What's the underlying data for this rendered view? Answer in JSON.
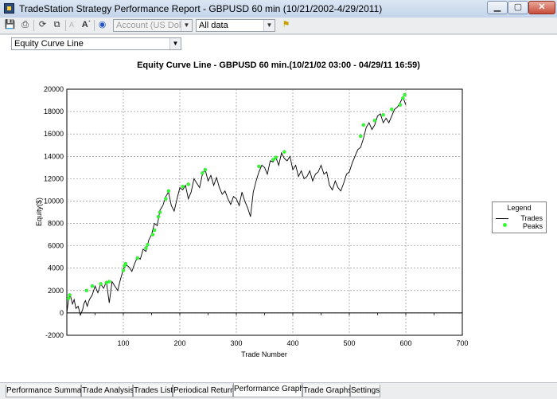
{
  "window": {
    "title": "TradeStation Strategy Performance Report - GBPUSD 60 min (10/21/2002-4/29/2011)",
    "minimize_glyph": "▁",
    "maximize_glyph": "▢",
    "close_glyph": "✕"
  },
  "toolbar": {
    "icons": [
      "save-icon",
      "print-icon",
      "refresh-icon",
      "copy-icon",
      "font-decrease-icon",
      "font-increase-icon",
      "globe-icon",
      "help-icon"
    ],
    "account_select": "Account (US Dollar)",
    "range_select": "All data"
  },
  "graph_select": {
    "value": "Equity Curve Line"
  },
  "chart_title": "Equity Curve Line - GBPUSD 60 min.(10/21/02 03:00 - 04/29/11 16:59)",
  "legend": {
    "title": "Legend",
    "items": [
      "Trades",
      "Peaks"
    ]
  },
  "tabs": [
    {
      "label": "Performance Summary"
    },
    {
      "label": "Trade Analysis"
    },
    {
      "label": "Trades List"
    },
    {
      "label": "Periodical Returns"
    },
    {
      "label": "Performance Graphs",
      "active": true
    },
    {
      "label": "Trade Graphs"
    },
    {
      "label": "Settings"
    }
  ],
  "colors": {
    "line": "#000000",
    "peaks": "#33ff33",
    "grid": "#808080"
  },
  "chart_data": {
    "type": "line",
    "title": "Equity Curve Line - GBPUSD 60 min.(10/21/02 03:00 - 04/29/11 16:59)",
    "xlabel": "Trade Number",
    "ylabel": "Equity($)",
    "xlim": [
      0,
      700
    ],
    "ylim": [
      -2000,
      20000
    ],
    "xticks": [
      100,
      200,
      300,
      400,
      500,
      600,
      700
    ],
    "yticks": [
      -2000,
      0,
      2000,
      4000,
      6000,
      8000,
      10000,
      12000,
      14000,
      16000,
      18000,
      20000
    ],
    "grid": true,
    "legend_position": "right",
    "series": [
      {
        "name": "Trades",
        "x": [
          0,
          3,
          6,
          10,
          13,
          16,
          20,
          24,
          28,
          30,
          33,
          36,
          40,
          45,
          50,
          55,
          60,
          65,
          70,
          75,
          80,
          85,
          90,
          95,
          100,
          105,
          110,
          115,
          120,
          125,
          130,
          135,
          140,
          145,
          150,
          155,
          160,
          165,
          170,
          175,
          180,
          185,
          190,
          195,
          200,
          205,
          210,
          215,
          220,
          225,
          230,
          235,
          240,
          245,
          250,
          255,
          260,
          265,
          270,
          275,
          280,
          285,
          290,
          295,
          300,
          305,
          310,
          315,
          320,
          325,
          330,
          335,
          340,
          345,
          350,
          355,
          360,
          365,
          370,
          375,
          380,
          385,
          390,
          395,
          400,
          405,
          410,
          415,
          420,
          425,
          430,
          435,
          440,
          445,
          450,
          455,
          460,
          465,
          470,
          475,
          480,
          485,
          490,
          495,
          500,
          505,
          510,
          515,
          520,
          525,
          530,
          535,
          540,
          545,
          550,
          555,
          560,
          565,
          570,
          575,
          580,
          585,
          590,
          595,
          600
        ],
        "y": [
          0,
          1200,
          1600,
          800,
          1200,
          400,
          600,
          -200,
          300,
          800,
          1100,
          600,
          1200,
          1600,
          2400,
          1800,
          2600,
          2200,
          2800,
          900,
          2800,
          2400,
          2000,
          3000,
          3900,
          4300,
          4100,
          3700,
          4400,
          5000,
          4800,
          5700,
          5500,
          6500,
          7000,
          8000,
          7800,
          9200,
          9600,
          10400,
          10800,
          9600,
          9100,
          10200,
          11200,
          11000,
          11400,
          10200,
          10800,
          12000,
          11600,
          11200,
          12400,
          12800,
          11800,
          12300,
          11400,
          12100,
          11200,
          10600,
          10900,
          10200,
          9700,
          10400,
          10200,
          9600,
          10800,
          10000,
          9400,
          8600,
          10800,
          11800,
          12600,
          13200,
          13000,
          12400,
          13600,
          13500,
          13900,
          13200,
          14300,
          13800,
          13600,
          14000,
          12800,
          13200,
          12200,
          12700,
          12000,
          12200,
          12700,
          11800,
          12400,
          12600,
          13200,
          12400,
          12600,
          11400,
          11000,
          11800,
          11200,
          10900,
          11600,
          12400,
          12600,
          13400,
          14000,
          14600,
          14800,
          15600,
          16600,
          17000,
          16400,
          16800,
          17600,
          17800,
          17000,
          17400,
          17000,
          17600,
          18200,
          18400,
          18800,
          19300,
          18600
        ]
      },
      {
        "name": "Peaks",
        "x": [
          3,
          5,
          35,
          45,
          60,
          70,
          75,
          100,
          102,
          104,
          125,
          140,
          143,
          152,
          155,
          162,
          165,
          175,
          180,
          205,
          215,
          240,
          245,
          340,
          365,
          370,
          385,
          520,
          525,
          545,
          560,
          575,
          590,
          595,
          598
        ],
        "y": [
          1300,
          1600,
          2000,
          2400,
          2600,
          2700,
          2800,
          3800,
          4200,
          4400,
          4900,
          5800,
          6100,
          7000,
          7400,
          8600,
          9000,
          10200,
          10900,
          11300,
          11500,
          12500,
          12800,
          13100,
          13700,
          13900,
          14400,
          15800,
          16800,
          17200,
          17700,
          18200,
          18600,
          19200,
          19500
        ]
      }
    ]
  }
}
